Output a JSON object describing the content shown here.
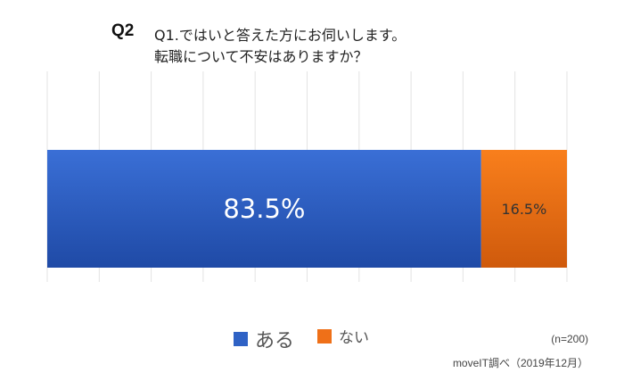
{
  "title": {
    "number": "Q2",
    "line1": "Q1.ではいと答えた方にお伺いします。",
    "line2": "転職について不安はありますか？"
  },
  "chart_data": {
    "type": "bar",
    "orientation": "horizontal-stacked-100",
    "categories": [
      ""
    ],
    "series": [
      {
        "name": "ある",
        "values": [
          83.5
        ],
        "label": "83.5%",
        "color": "#2f62c5"
      },
      {
        "name": "ない",
        "values": [
          16.5
        ],
        "label": "16.5%",
        "color": "#ef7018"
      }
    ],
    "xlim": [
      0,
      100
    ],
    "grid": true,
    "legend_position": "bottom"
  },
  "notes": {
    "sample_size": "(n=200)",
    "source": "moveIT調べ（2019年12月）"
  }
}
